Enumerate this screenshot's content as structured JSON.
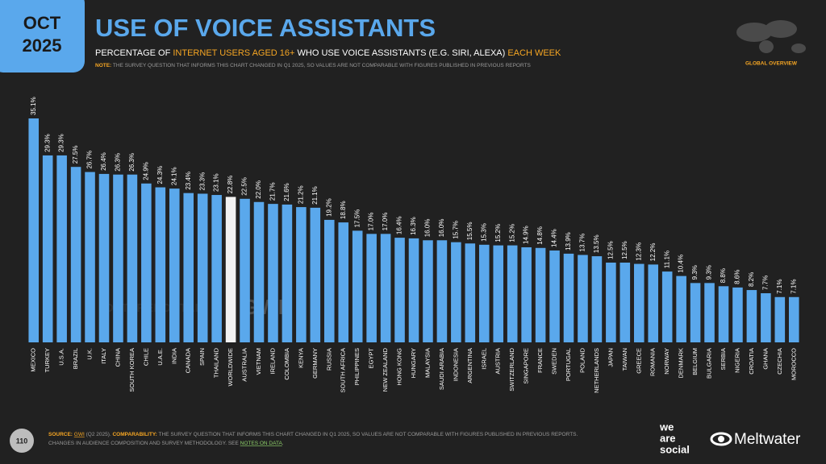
{
  "header": {
    "month": "OCT",
    "year": "2025",
    "title": "USE OF VOICE ASSISTANTS",
    "subtitle": [
      "PERCENTAGE OF ",
      "INTERNET USERS AGED 16+",
      " WHO USE VOICE ASSISTANTS (E.G. SIRI, ALEXA) ",
      "EACH WEEK"
    ],
    "note_label": "NOTE:",
    "note_text": " THE SURVEY QUESTION THAT INFORMS THIS CHART CHANGED IN Q1 2025, SO VALUES ARE NOT COMPARABLE WITH FIGURES PUBLISHED IN PREVIOUS REPORTS",
    "badge": "GLOBAL OVERVIEW"
  },
  "chart_data": {
    "type": "bar",
    "categories": [
      "MEXICO",
      "TURKEY",
      "U.S.A.",
      "BRAZIL",
      "U.K.",
      "ITALY",
      "CHINA",
      "SOUTH KOREA",
      "CHILE",
      "U.A.E.",
      "INDIA",
      "CANADA",
      "SPAIN",
      "THAILAND",
      "WORLDWIDE",
      "AUSTRALIA",
      "VIETNAM",
      "IRELAND",
      "COLOMBIA",
      "KENYA",
      "GERMANY",
      "RUSSIA",
      "SOUTH AFRICA",
      "PHILIPPINES",
      "EGYPT",
      "NEW ZEALAND",
      "HONG KONG",
      "HUNGARY",
      "MALAYSIA",
      "SAUDI ARABIA",
      "INDONESIA",
      "ARGENTINA",
      "ISRAEL",
      "AUSTRIA",
      "SWITZERLAND",
      "SINGAPORE",
      "FRANCE",
      "SWEDEN",
      "PORTUGAL",
      "POLAND",
      "NETHERLANDS",
      "JAPAN",
      "TAIWAN",
      "GREECE",
      "ROMANIA",
      "NORWAY",
      "DENMARK",
      "BELGIUM",
      "BULGARIA",
      "SERBIA",
      "NIGERIA",
      "CROATIA",
      "GHANA",
      "CZECHIA",
      "MOROCCO"
    ],
    "values": [
      35.1,
      29.3,
      29.3,
      27.5,
      26.7,
      26.4,
      26.3,
      26.3,
      24.9,
      24.3,
      24.1,
      23.4,
      23.3,
      23.1,
      22.8,
      22.5,
      22.0,
      21.7,
      21.6,
      21.2,
      21.1,
      19.2,
      18.8,
      17.5,
      17.0,
      17.0,
      16.4,
      16.3,
      16.0,
      16.0,
      15.7,
      15.5,
      15.3,
      15.2,
      15.2,
      14.9,
      14.8,
      14.4,
      13.9,
      13.7,
      13.5,
      12.5,
      12.5,
      12.3,
      12.2,
      11.1,
      10.4,
      9.3,
      9.3,
      8.8,
      8.6,
      8.2,
      7.7,
      7.1,
      7.1
    ],
    "value_labels": [
      "35.1%",
      "29.3%",
      "29.3%",
      "27.5%",
      "26.7%",
      "26.4%",
      "26.3%",
      "26.3%",
      "24.9%",
      "24.3%",
      "24.1%",
      "23.4%",
      "23.3%",
      "23.1%",
      "22.8%",
      "22.5%",
      "22.0%",
      "21.7%",
      "21.6%",
      "21.2%",
      "21.1%",
      "19.2%",
      "18.8%",
      "17.5%",
      "17.0%",
      "17.0%",
      "16.4%",
      "16.3%",
      "16.0%",
      "16.0%",
      "15.7%",
      "15.5%",
      "15.3%",
      "15.2%",
      "15.2%",
      "14.9%",
      "14.8%",
      "14.4%",
      "13.9%",
      "13.7%",
      "13.5%",
      "12.5%",
      "12.5%",
      "12.3%",
      "12.2%",
      "11.1%",
      "10.4%",
      "9.3%",
      "9.3%",
      "8.8%",
      "8.6%",
      "8.2%",
      "7.7%",
      "7.1%",
      "7.1%"
    ],
    "colors": [
      "#5aa8ec",
      "#5aa8ec",
      "#5aa8ec",
      "#5aa8ec",
      "#5aa8ec",
      "#5aa8ec",
      "#5aa8ec",
      "#5aa8ec",
      "#5aa8ec",
      "#5aa8ec",
      "#5aa8ec",
      "#5aa8ec",
      "#5aa8ec",
      "#5aa8ec",
      "#f2f2f2",
      "#5aa8ec",
      "#5aa8ec",
      "#5aa8ec",
      "#5aa8ec",
      "#5aa8ec",
      "#5aa8ec",
      "#5aa8ec",
      "#5aa8ec",
      "#5aa8ec",
      "#5aa8ec",
      "#5aa8ec",
      "#5aa8ec",
      "#5aa8ec",
      "#5aa8ec",
      "#5aa8ec",
      "#5aa8ec",
      "#5aa8ec",
      "#5aa8ec",
      "#5aa8ec",
      "#5aa8ec",
      "#5aa8ec",
      "#5aa8ec",
      "#5aa8ec",
      "#5aa8ec",
      "#5aa8ec",
      "#5aa8ec",
      "#5aa8ec",
      "#5aa8ec",
      "#5aa8ec",
      "#5aa8ec",
      "#5aa8ec",
      "#5aa8ec",
      "#5aa8ec",
      "#5aa8ec",
      "#5aa8ec",
      "#5aa8ec",
      "#5aa8ec",
      "#5aa8ec",
      "#5aa8ec",
      "#5aa8ec"
    ]
  },
  "watermarks": [
    "DATAREPORTAL",
    "GWI."
  ],
  "footer": {
    "page": "110",
    "source_label": "SOURCE:",
    "source_link": "GWI",
    "source_text": " (Q2 2025). ",
    "comparability_label": "COMPARABILITY:",
    "comparability_text": " THE SURVEY QUESTION THAT INFORMS THIS CHART CHANGED IN Q1 2025, SO VALUES ARE NOT COMPARABLE WITH FIGURES PUBLISHED IN PREVIOUS REPORTS.",
    "line2": "CHANGES IN AUDIENCE COMPOSITION AND SURVEY METHODOLOGY. SEE ",
    "notes_link": "NOTES ON DATA",
    "line2_end": ".",
    "logo_1": [
      "we",
      "are",
      "social"
    ],
    "logo_2": "Meltwater"
  }
}
